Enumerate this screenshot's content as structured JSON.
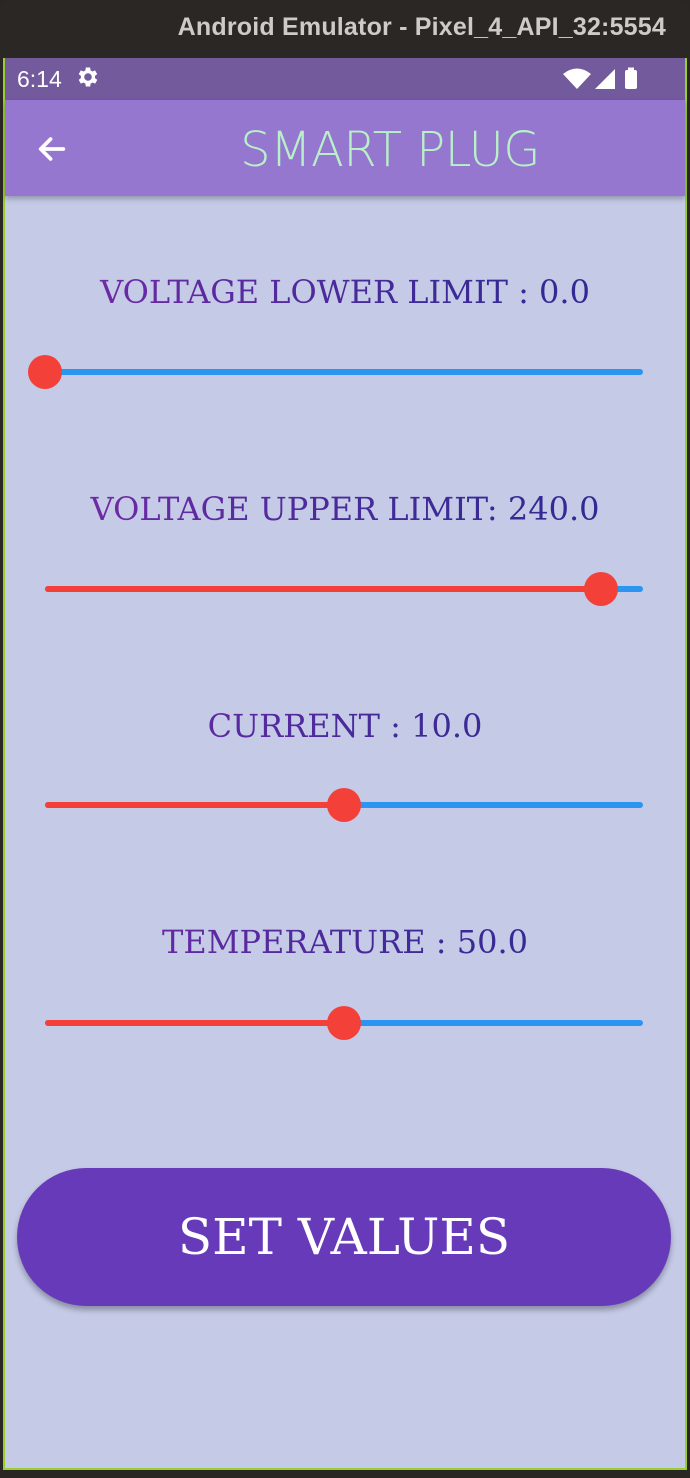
{
  "window": {
    "title": "Android Emulator - Pixel_4_API_32:5554"
  },
  "statusbar": {
    "time": "6:14",
    "icons": [
      "settings-icon",
      "wifi-icon",
      "signal-icon",
      "battery-icon"
    ]
  },
  "appbar": {
    "title": "SMART PLUG",
    "back_icon": "arrow-left-icon"
  },
  "sliders": [
    {
      "label": "VOLTAGE LOWER LIMIT : 0.0",
      "fraction": 0.0
    },
    {
      "label": "VOLTAGE UPPER LIMIT: 240.0",
      "fraction": 0.93
    },
    {
      "label": "CURRENT : 10.0",
      "fraction": 0.5
    },
    {
      "label": "TEMPERATURE : 50.0",
      "fraction": 0.5
    }
  ],
  "button": {
    "label": "SET VALUES"
  },
  "colors": {
    "appbar": "#9677cf",
    "statusbar": "#735a9c",
    "background": "#c5cae7",
    "slider_active": "#f3413a",
    "slider_inactive": "#2b95f0",
    "button": "#673ab9",
    "title_text": "#b8f0c8"
  }
}
